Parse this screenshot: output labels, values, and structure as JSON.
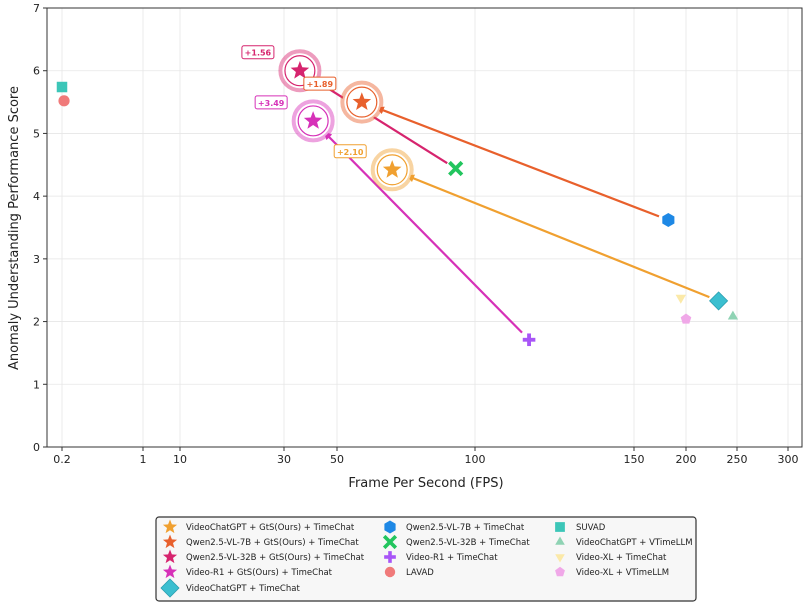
{
  "chart_data": {
    "type": "scatter",
    "title": "",
    "xlabel": "Frame Per Second (FPS)",
    "ylabel": "Anomaly Understanding Performance Score",
    "ylim": [
      0,
      7
    ],
    "yticks": [
      "0",
      "1",
      "2",
      "3",
      "4",
      "5",
      "6",
      "7"
    ],
    "xticks": [
      {
        "value": 0.2,
        "label": "0.2"
      },
      {
        "value": 1,
        "label": "1"
      },
      {
        "value": 10,
        "label": "10"
      },
      {
        "value": 30,
        "label": "30"
      },
      {
        "value": 50,
        "label": "50"
      },
      {
        "value": 100,
        "label": "100"
      },
      {
        "value": 150,
        "label": "150"
      },
      {
        "value": 200,
        "label": "200"
      },
      {
        "value": 250,
        "label": "250"
      },
      {
        "value": 300,
        "label": "300"
      }
    ],
    "grid": true,
    "legend_position": "bottom",
    "series": [
      {
        "name": "VideoChatGPT + GtS(Ours) + TimeChat",
        "marker": "star",
        "color": "#f0a030",
        "x": 70,
        "y": 4.42
      },
      {
        "name": "Qwen2.5-VL-7B + GtS(Ours) + TimeChat",
        "marker": "star",
        "color": "#e8602c",
        "x": 59,
        "y": 5.5
      },
      {
        "name": "Qwen2.5-VL-32B + GtS(Ours) + TimeChat",
        "marker": "star",
        "color": "#d6246e",
        "x": 36,
        "y": 6.0
      },
      {
        "name": "Video-R1 + GtS(Ours) + TimeChat",
        "marker": "star",
        "color": "#d631b8",
        "x": 41,
        "y": 5.2
      },
      {
        "name": "VideoChatGPT + TimeChat",
        "marker": "diamond",
        "color": "#3bbfd0",
        "x": 232,
        "y": 2.33
      },
      {
        "name": "Qwen2.5-VL-7B + TimeChat",
        "marker": "hexagon",
        "color": "#1e88e5",
        "x": 183,
        "y": 3.62
      },
      {
        "name": "Qwen2.5-VL-32B + TimeChat",
        "marker": "x",
        "color": "#22c55e",
        "x": 93,
        "y": 4.44
      },
      {
        "name": "Video-R1 + TimeChat",
        "marker": "plus",
        "color": "#a855f7",
        "x": 117,
        "y": 1.71
      },
      {
        "name": "LAVAD",
        "marker": "circle",
        "color": "#f07a7a",
        "x": 0.22,
        "y": 5.52
      },
      {
        "name": "SUVAD",
        "marker": "square",
        "color": "#3cc6b8",
        "x": 0.2,
        "y": 5.74
      },
      {
        "name": "VideoChatGPT + VTimeLLM",
        "marker": "triangle",
        "color": "#8fd3b4",
        "x": 246,
        "y": 2.08
      },
      {
        "name": "Video-XL + TimeChat",
        "marker": "triangle-down",
        "color": "#fbe9a8",
        "x": 195,
        "y": 2.38
      },
      {
        "name": "Video-XL + VTimeLLM",
        "marker": "pentagon",
        "color": "#f0a8e8",
        "x": 200,
        "y": 2.04
      }
    ],
    "annotations": [
      {
        "from_x": 232,
        "from_y": 2.33,
        "to_x": 70,
        "to_y": 4.42,
        "label": "+2.10",
        "color": "#f0a030"
      },
      {
        "from_x": 183,
        "from_y": 3.62,
        "to_x": 59,
        "to_y": 5.5,
        "label": "+1.89",
        "color": "#e8602c"
      },
      {
        "from_x": 93,
        "from_y": 4.44,
        "to_x": 36,
        "to_y": 6.0,
        "label": "+1.56",
        "color": "#d6246e"
      },
      {
        "from_x": 117,
        "from_y": 1.71,
        "to_x": 41,
        "to_y": 5.2,
        "label": "+3.49",
        "color": "#d631b8"
      }
    ]
  }
}
